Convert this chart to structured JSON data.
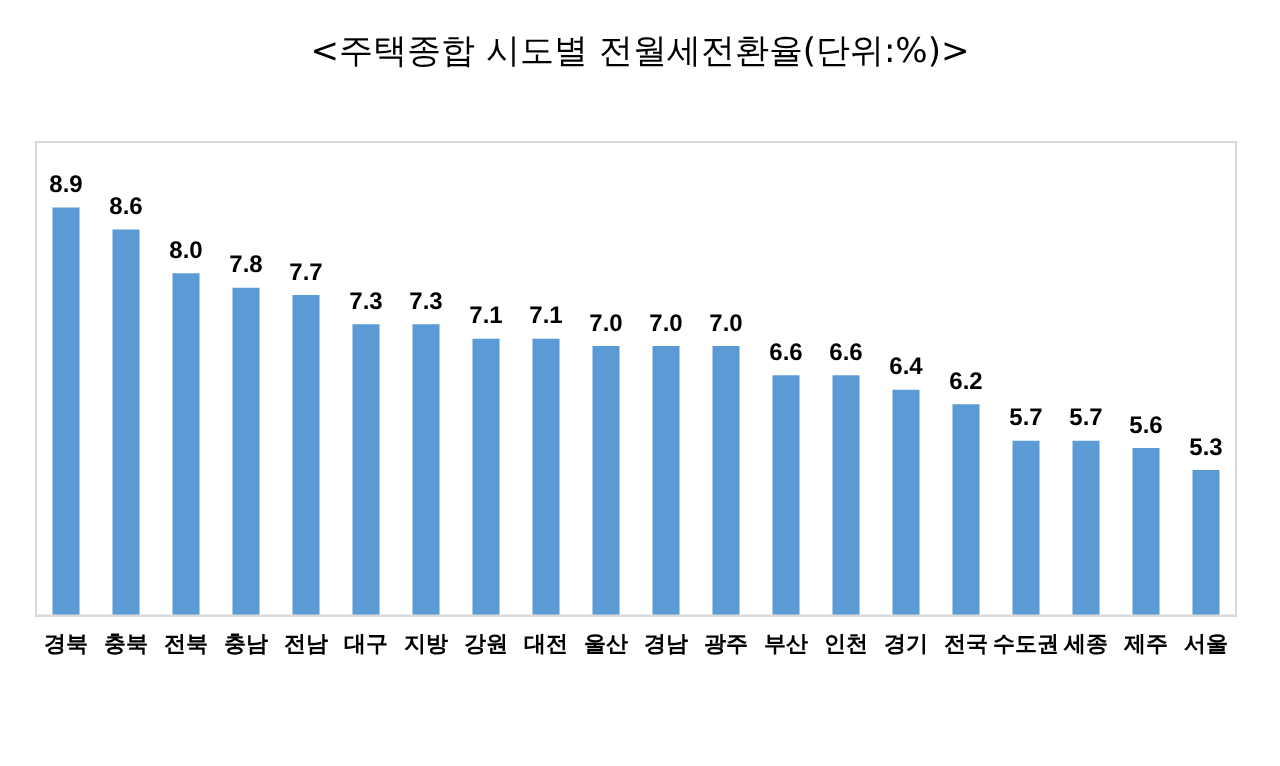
{
  "chart_data": {
    "type": "bar",
    "title": "<주택종합 시도별 전월세전환율(단위:%)>",
    "categories": [
      "경북",
      "충북",
      "전북",
      "충남",
      "전남",
      "대구",
      "지방",
      "강원",
      "대전",
      "울산",
      "경남",
      "광주",
      "부산",
      "인천",
      "경기",
      "전국",
      "수도권",
      "세종",
      "제주",
      "서울"
    ],
    "values": [
      8.9,
      8.6,
      8.0,
      7.8,
      7.7,
      7.3,
      7.3,
      7.1,
      7.1,
      7.0,
      7.0,
      7.0,
      6.6,
      6.6,
      6.4,
      6.2,
      5.7,
      5.7,
      5.6,
      5.3
    ],
    "color": "#5b9bd5",
    "ylim": [
      3.3,
      9.8
    ],
    "value_labels": [
      "8.9",
      "8.6",
      "8.0",
      "7.8",
      "7.7",
      "7.3",
      "7.3",
      "7.1",
      "7.1",
      "7.0",
      "7.0",
      "7.0",
      "6.6",
      "6.6",
      "6.4",
      "6.2",
      "5.7",
      "5.7",
      "5.6",
      "5.3"
    ],
    "grid": false,
    "legend": false
  }
}
